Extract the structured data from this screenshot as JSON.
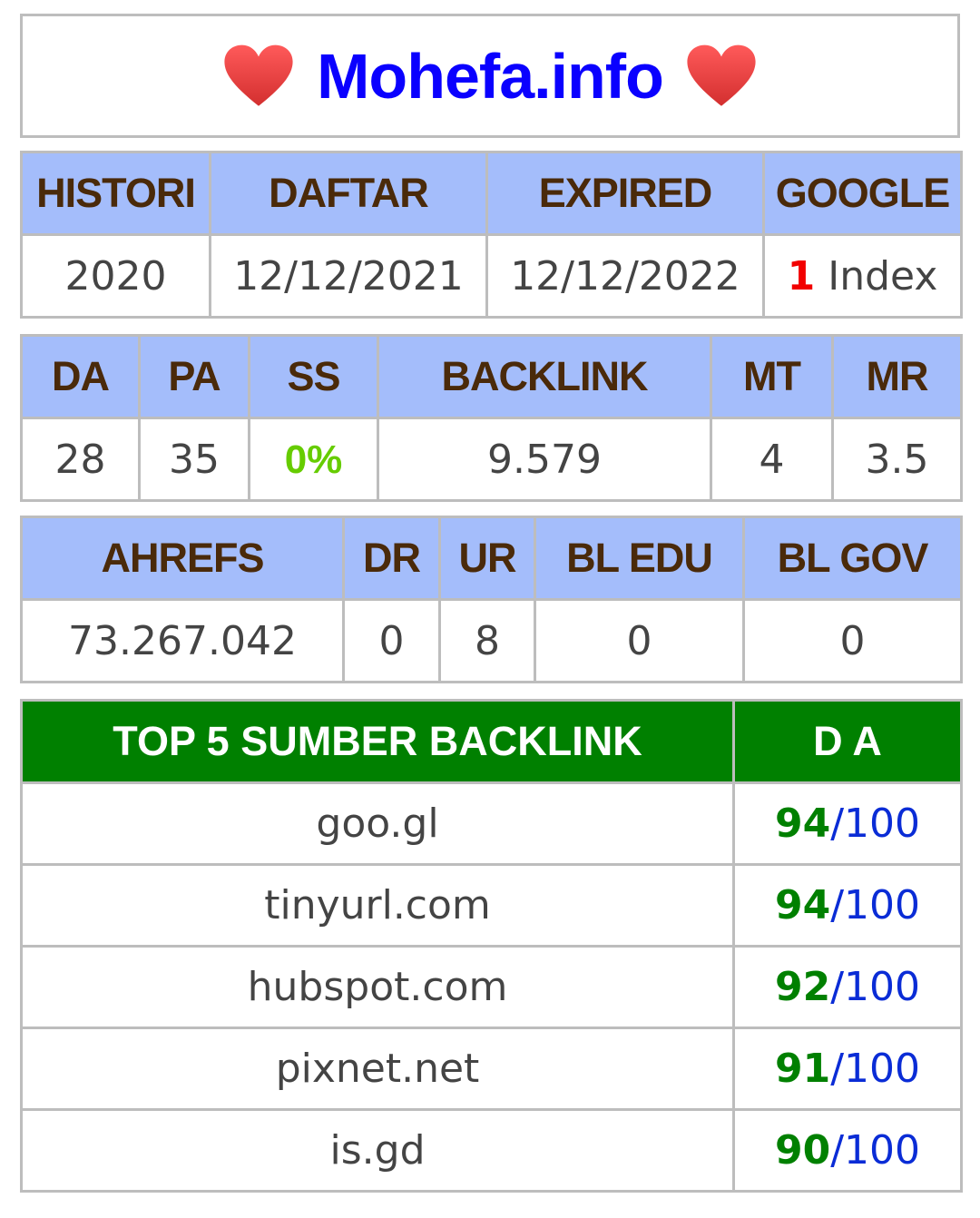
{
  "title": {
    "site": "Mohefa.info",
    "left_icon": "heart-icon",
    "right_icon": "heart-icon",
    "heart_color": "#e53935"
  },
  "table1": {
    "headers": [
      "HISTORI",
      "DAFTAR",
      "EXPIRED",
      "GOOGLE"
    ],
    "values": {
      "histori": "2020",
      "daftar": "12/12/2021",
      "expired": "12/12/2022",
      "google_count": "1",
      "google_label": "Index"
    }
  },
  "table2": {
    "headers": [
      "DA",
      "PA",
      "SS",
      "BACKLINK",
      "MT",
      "MR"
    ],
    "values": [
      "28",
      "35",
      "0%",
      "9.579",
      "4",
      "3.5"
    ]
  },
  "table3": {
    "headers": [
      "AHREFS",
      "DR",
      "UR",
      "BL EDU",
      "BL GOV"
    ],
    "values": [
      "73.267.042",
      "0",
      "8",
      "0",
      "0"
    ]
  },
  "top_backlinks": {
    "header_source": "TOP 5 SUMBER BACKLINK",
    "header_da": "D A",
    "rows": [
      {
        "source": "goo.gl",
        "score": "94",
        "max": "/100"
      },
      {
        "source": "tinyurl.com",
        "score": "94",
        "max": "/100"
      },
      {
        "source": "hubspot.com",
        "score": "92",
        "max": "/100"
      },
      {
        "source": "pixnet.net",
        "score": "91",
        "max": "/100"
      },
      {
        "source": "is.gd",
        "score": "90",
        "max": "/100"
      }
    ]
  },
  "colors": {
    "header_bg": "#a4bdfb",
    "header_text": "#4a2a0a",
    "green_header": "#008000",
    "site_blue": "#0a00ff"
  }
}
